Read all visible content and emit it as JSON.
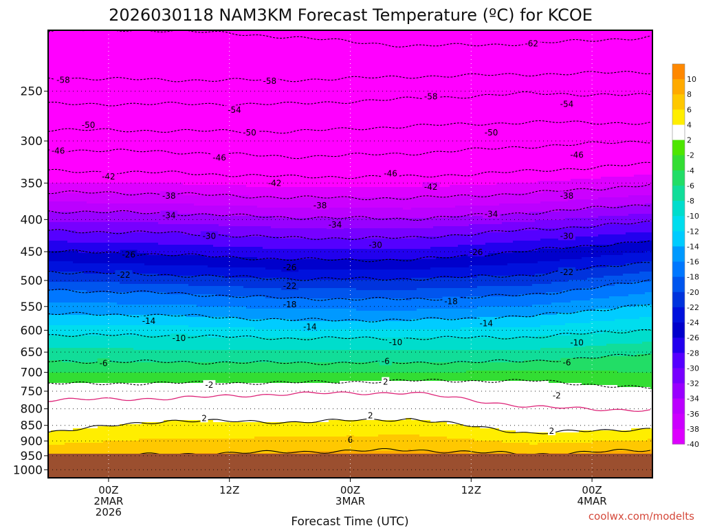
{
  "chart_data": {
    "type": "heatmap",
    "title": "2026030118 NAM3KM Forecast Temperature (ºC) for KCOE",
    "xlabel": "Forecast Time (UTC)",
    "ylabel": "",
    "credit": "coolwx.com/modelts",
    "x_ticks": [
      {
        "hours": 6,
        "lines": [
          "00Z",
          "2MAR",
          "2026"
        ]
      },
      {
        "hours": 18,
        "lines": [
          "12Z"
        ]
      },
      {
        "hours": 30,
        "lines": [
          "00Z",
          "3MAR"
        ]
      },
      {
        "hours": 42,
        "lines": [
          "12Z"
        ]
      },
      {
        "hours": 54,
        "lines": [
          "00Z",
          "4MAR"
        ]
      }
    ],
    "xlim_hours": [
      0,
      60
    ],
    "y_ticks": [
      "250",
      "300",
      "350",
      "400",
      "450",
      "500",
      "550",
      "600",
      "650",
      "700",
      "750",
      "800",
      "850",
      "900",
      "950",
      "1000"
    ],
    "ylim_hpa": [
      200,
      1030
    ],
    "y_scale": "log-pressure",
    "grid": "dotted",
    "ground_hpa": 943,
    "colors": {
      "ground": "#9b4f2f",
      "below_-40": "#ff00ff",
      "isotherm_0": "#dd2277",
      "contours": "#000000"
    },
    "colorbar": {
      "levels": [
        "10",
        "8",
        "6",
        "4",
        "2",
        "-2",
        "-4",
        "-6",
        "-8",
        "-10",
        "-12",
        "-14",
        "-16",
        "-18",
        "-20",
        "-22",
        "-24",
        "-26",
        "-28",
        "-30",
        "-32",
        "-34",
        "-36",
        "-38",
        "-40"
      ],
      "colors": [
        "#ff8800",
        "#ffaa00",
        "#ffc800",
        "#ffee00",
        "#ffffff",
        "#4de600",
        "#33dd33",
        "#22dd66",
        "#11dd99",
        "#00ddcc",
        "#00ddee",
        "#00ccff",
        "#0099ff",
        "#0077ff",
        "#0055ee",
        "#0033dd",
        "#0011dd",
        "#0000cc",
        "#2200ee",
        "#5500ff",
        "#7700ff",
        "#9900ff",
        "#bb00ff",
        "#cc00ff",
        "#dd00ff"
      ]
    },
    "isotherm_levels_hpa": [
      {
        "t": -62,
        "p": [
          200,
          200,
          205,
          212,
          210,
          205
        ]
      },
      {
        "t": -58,
        "p": [
          238,
          240,
          240,
          237,
          235,
          233
        ]
      },
      {
        "t": -54,
        "p": [
          262,
          262,
          262,
          257,
          252,
          254
        ]
      },
      {
        "t": -50,
        "p": [
          288,
          289,
          290,
          284,
          280,
          281
        ]
      },
      {
        "t": -46,
        "p": [
          310,
          312,
          318,
          314,
          306,
          300
        ]
      },
      {
        "t": -42,
        "p": [
          335,
          337,
          342,
          342,
          335,
          326
        ]
      },
      {
        "t": -38,
        "p": [
          362,
          364,
          369,
          370,
          363,
          352
        ]
      },
      {
        "t": -34,
        "p": [
          388,
          391,
          397,
          399,
          390,
          378
        ]
      },
      {
        "t": -30,
        "p": [
          417,
          420,
          428,
          428,
          415,
          404
        ]
      },
      {
        "t": -26,
        "p": [
          449,
          455,
          463,
          464,
          448,
          432
        ]
      },
      {
        "t": -22,
        "p": [
          484,
          490,
          497,
          497,
          490,
          466
        ]
      },
      {
        "t": -18,
        "p": [
          518,
          524,
          534,
          536,
          527,
          500
        ]
      },
      {
        "t": -14,
        "p": [
          565,
          568,
          578,
          578,
          570,
          545
        ]
      },
      {
        "t": -10,
        "p": [
          610,
          612,
          618,
          618,
          615,
          598
        ]
      },
      {
        "t": -6,
        "p": [
          672,
          674,
          676,
          676,
          672,
          655
        ]
      },
      {
        "t": -2,
        "p": [
          730,
          728,
          727,
          722,
          722,
          742
        ]
      },
      {
        "t": 0,
        "p": [
          775,
          770,
          757,
          754,
          795,
          805
        ]
      },
      {
        "t": 2,
        "p": [
          870,
          835,
          840,
          830,
          875,
          860
        ]
      },
      {
        "t": 6,
        "p": [
          955,
          945,
          937,
          930,
          945,
          930
        ]
      }
    ],
    "contour_labels": [
      {
        "t": "-62",
        "x_hours": 48.0,
        "p": 210
      },
      {
        "t": "-58",
        "x_hours": 1.5,
        "p": 240
      },
      {
        "t": "-58",
        "x_hours": 22.0,
        "p": 241
      },
      {
        "t": "-58",
        "x_hours": 38.0,
        "p": 255
      },
      {
        "t": "-54",
        "x_hours": 18.5,
        "p": 268
      },
      {
        "t": "-54",
        "x_hours": 51.5,
        "p": 262
      },
      {
        "t": "-50",
        "x_hours": 4.0,
        "p": 283
      },
      {
        "t": "-50",
        "x_hours": 20.0,
        "p": 291
      },
      {
        "t": "-50",
        "x_hours": 44.0,
        "p": 291
      },
      {
        "t": "-46",
        "x_hours": 1.0,
        "p": 311
      },
      {
        "t": "-46",
        "x_hours": 17.0,
        "p": 319
      },
      {
        "t": "-46",
        "x_hours": 34.0,
        "p": 338
      },
      {
        "t": "-46",
        "x_hours": 52.5,
        "p": 316
      },
      {
        "t": "-42",
        "x_hours": 6.0,
        "p": 342
      },
      {
        "t": "-42",
        "x_hours": 22.5,
        "p": 350
      },
      {
        "t": "-42",
        "x_hours": 38.0,
        "p": 355
      },
      {
        "t": "-38",
        "x_hours": 12.0,
        "p": 367
      },
      {
        "t": "-38",
        "x_hours": 27.0,
        "p": 380
      },
      {
        "t": "-38",
        "x_hours": 51.5,
        "p": 367
      },
      {
        "t": "-34",
        "x_hours": 12.0,
        "p": 394
      },
      {
        "t": "-34",
        "x_hours": 28.5,
        "p": 408
      },
      {
        "t": "-34",
        "x_hours": 44.0,
        "p": 392
      },
      {
        "t": "-30",
        "x_hours": 16.0,
        "p": 425
      },
      {
        "t": "-30",
        "x_hours": 32.5,
        "p": 439
      },
      {
        "t": "-30",
        "x_hours": 51.5,
        "p": 425
      },
      {
        "t": "-26",
        "x_hours": 8.0,
        "p": 455
      },
      {
        "t": "-26",
        "x_hours": 24.0,
        "p": 477
      },
      {
        "t": "-26",
        "x_hours": 42.5,
        "p": 451
      },
      {
        "t": "-22",
        "x_hours": 7.5,
        "p": 490
      },
      {
        "t": "-22",
        "x_hours": 24.0,
        "p": 510
      },
      {
        "t": "-22",
        "x_hours": 51.5,
        "p": 485
      },
      {
        "t": "-18",
        "x_hours": 24.0,
        "p": 546
      },
      {
        "t": "-18",
        "x_hours": 40.0,
        "p": 540
      },
      {
        "t": "-14",
        "x_hours": 10.0,
        "p": 580
      },
      {
        "t": "-14",
        "x_hours": 26.0,
        "p": 593
      },
      {
        "t": "-14",
        "x_hours": 43.5,
        "p": 585
      },
      {
        "t": "-10",
        "x_hours": 13.0,
        "p": 618
      },
      {
        "t": "-10",
        "x_hours": 34.5,
        "p": 627
      },
      {
        "t": "-10",
        "x_hours": 52.5,
        "p": 628
      },
      {
        "t": "-6",
        "x_hours": 5.5,
        "p": 677
      },
      {
        "t": "-6",
        "x_hours": 33.5,
        "p": 672
      },
      {
        "t": "-6",
        "x_hours": 51.5,
        "p": 676
      },
      {
        "t": "-2",
        "x_hours": 16.0,
        "p": 733
      },
      {
        "t": "2",
        "x_hours": 33.5,
        "p": 725
      },
      {
        "t": "-2",
        "x_hours": 50.5,
        "p": 762
      },
      {
        "t": "2",
        "x_hours": 15.5,
        "p": 828
      },
      {
        "t": "2",
        "x_hours": 32.0,
        "p": 820
      },
      {
        "t": "2",
        "x_hours": 50.0,
        "p": 868
      },
      {
        "t": "6",
        "x_hours": 30.0,
        "p": 897
      }
    ]
  }
}
